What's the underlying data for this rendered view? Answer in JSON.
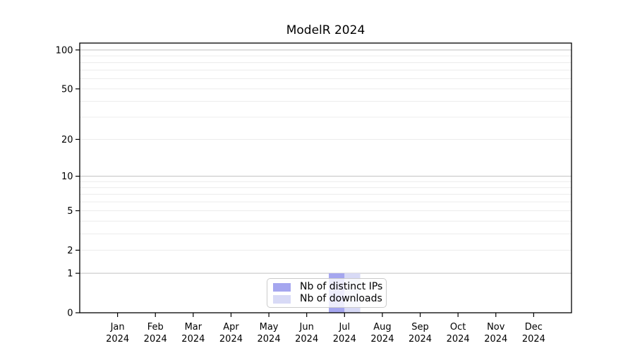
{
  "chart_data": {
    "type": "bar",
    "title": "ModelR 2024",
    "categories": [
      "Jan",
      "Feb",
      "Mar",
      "Apr",
      "May",
      "Jun",
      "Jul",
      "Aug",
      "Sep",
      "Oct",
      "Nov",
      "Dec"
    ],
    "xtick_year": "2024",
    "series": [
      {
        "name": "Nb of distinct IPs",
        "color": "#a5a6ef",
        "values": [
          0,
          0,
          0,
          0,
          0,
          0,
          1,
          0,
          0,
          0,
          0,
          0
        ]
      },
      {
        "name": "Nb of downloads",
        "color": "#d8daf6",
        "values": [
          0,
          0,
          0,
          0,
          0,
          0,
          1,
          0,
          0,
          0,
          0,
          0
        ]
      }
    ],
    "yscale": "log1p",
    "ylim": [
      0,
      113
    ],
    "ytick_values": [
      0,
      1,
      2,
      5,
      10,
      20,
      50,
      100
    ],
    "gridlines": {
      "major_values": [
        1,
        10,
        100
      ],
      "minor_values": [
        2,
        3,
        4,
        5,
        6,
        7,
        8,
        9,
        20,
        30,
        40,
        50,
        60,
        70,
        80,
        90
      ],
      "major_color": "#c8c8c8",
      "minor_color": "#ececec"
    },
    "legend_position": "lower center",
    "axis_color": "#000000",
    "background": "#ffffff"
  }
}
